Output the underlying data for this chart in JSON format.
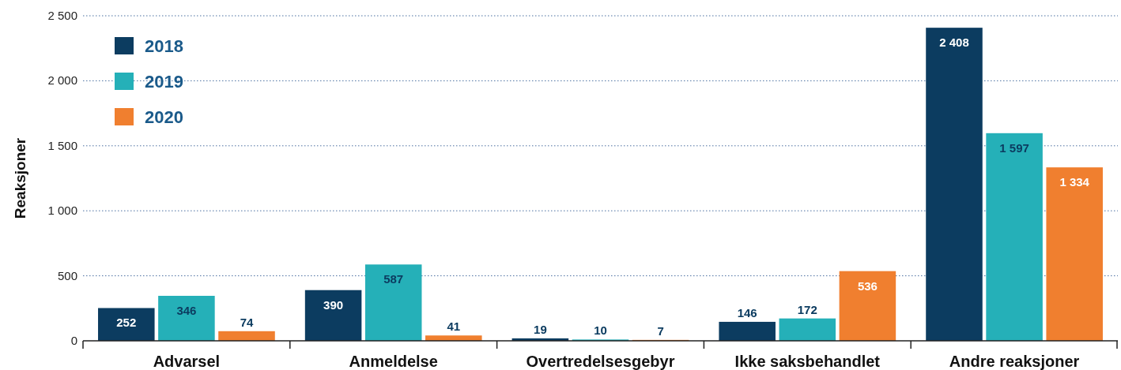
{
  "chart_data": {
    "type": "bar",
    "ylabel": "Reaksjoner",
    "categories": [
      "Advarsel",
      "Anmeldelse",
      "Overtredelsesgebyr",
      "Ikke saksbehandlet",
      "Andre reaksjoner"
    ],
    "series": [
      {
        "name": "2018",
        "color": "#0c3c60",
        "values": [
          252,
          390,
          19,
          146,
          2408
        ]
      },
      {
        "name": "2019",
        "color": "#25b0b8",
        "values": [
          346,
          587,
          10,
          172,
          1597
        ]
      },
      {
        "name": "2020",
        "color": "#f07f2f",
        "values": [
          74,
          41,
          7,
          536,
          1334
        ]
      }
    ],
    "ylim": [
      0,
      2500
    ],
    "yticks": [
      0,
      500,
      {
        "value": 1000,
        "label": "1 000"
      },
      {
        "value": 1500,
        "label": "1 500"
      },
      {
        "value": 2000,
        "label": "2 000"
      },
      {
        "value": 2500,
        "label": "2 500"
      }
    ],
    "grid": "y",
    "legend": "top left",
    "data_labels": true
  }
}
